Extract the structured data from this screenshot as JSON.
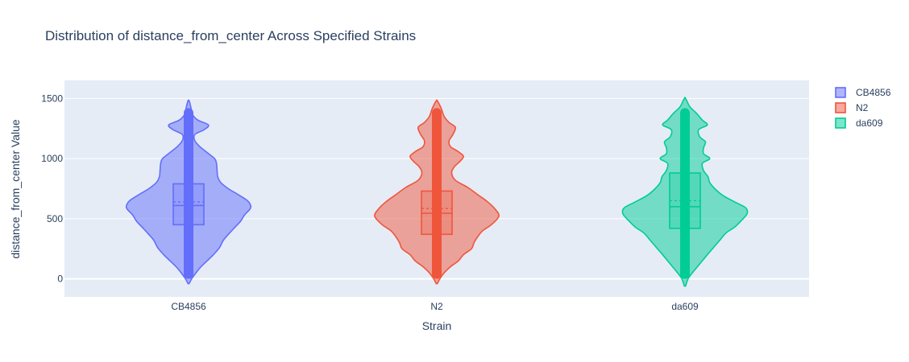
{
  "chart_data": {
    "type": "violin",
    "title": "Distribution of distance_from_center Across Specified Strains",
    "xlabel": "Strain",
    "ylabel": "distance_from_center Value",
    "ylim": [
      -150,
      1650
    ],
    "yticks": [
      0,
      500,
      1000,
      1500
    ],
    "ytick_labels": [
      "0",
      "500",
      "1000",
      "1500"
    ],
    "grid": true,
    "legend_position": "top-right",
    "categories": [
      "CB4856",
      "N2",
      "da609"
    ],
    "series": [
      {
        "name": "CB4856",
        "color": "#636efa",
        "min": 0,
        "max": 1420,
        "q1": 450,
        "median": 610,
        "q3": 790,
        "mean": 640,
        "kde_min": -40,
        "kde_max": 1480,
        "density": [
          [
            -40,
            0.01
          ],
          [
            0,
            0.05
          ],
          [
            50,
            0.12
          ],
          [
            100,
            0.2
          ],
          [
            150,
            0.3
          ],
          [
            200,
            0.4
          ],
          [
            260,
            0.5
          ],
          [
            320,
            0.56
          ],
          [
            380,
            0.66
          ],
          [
            430,
            0.75
          ],
          [
            480,
            0.84
          ],
          [
            530,
            0.9
          ],
          [
            580,
            0.99
          ],
          [
            610,
            1.0
          ],
          [
            650,
            0.95
          ],
          [
            700,
            0.8
          ],
          [
            750,
            0.64
          ],
          [
            800,
            0.52
          ],
          [
            850,
            0.47
          ],
          [
            900,
            0.46
          ],
          [
            960,
            0.45
          ],
          [
            1000,
            0.42
          ],
          [
            1050,
            0.3
          ],
          [
            1100,
            0.18
          ],
          [
            1150,
            0.1
          ],
          [
            1200,
            0.1
          ],
          [
            1240,
            0.25
          ],
          [
            1280,
            0.32
          ],
          [
            1320,
            0.15
          ],
          [
            1370,
            0.06
          ],
          [
            1420,
            0.04
          ],
          [
            1480,
            0.01
          ]
        ]
      },
      {
        "name": "N2",
        "color": "#ef553b",
        "min": 0,
        "max": 1420,
        "q1": 370,
        "median": 545,
        "q3": 730,
        "mean": 585,
        "kde_min": -40,
        "kde_max": 1480,
        "density": [
          [
            -40,
            0.01
          ],
          [
            0,
            0.05
          ],
          [
            50,
            0.12
          ],
          [
            100,
            0.22
          ],
          [
            150,
            0.35
          ],
          [
            200,
            0.43
          ],
          [
            250,
            0.56
          ],
          [
            300,
            0.6
          ],
          [
            350,
            0.66
          ],
          [
            400,
            0.74
          ],
          [
            450,
            0.88
          ],
          [
            520,
            1.0
          ],
          [
            580,
            0.94
          ],
          [
            640,
            0.82
          ],
          [
            700,
            0.66
          ],
          [
            760,
            0.5
          ],
          [
            820,
            0.3
          ],
          [
            880,
            0.24
          ],
          [
            930,
            0.28
          ],
          [
            980,
            0.38
          ],
          [
            1020,
            0.43
          ],
          [
            1060,
            0.34
          ],
          [
            1100,
            0.22
          ],
          [
            1150,
            0.2
          ],
          [
            1200,
            0.26
          ],
          [
            1260,
            0.3
          ],
          [
            1300,
            0.2
          ],
          [
            1350,
            0.12
          ],
          [
            1420,
            0.07
          ],
          [
            1480,
            0.01
          ]
        ]
      },
      {
        "name": "da609",
        "color": "#00cc96",
        "min": 0,
        "max": 1420,
        "q1": 420,
        "median": 600,
        "q3": 880,
        "mean": 650,
        "kde_min": -60,
        "kde_max": 1500,
        "density": [
          [
            -60,
            0.01
          ],
          [
            0,
            0.05
          ],
          [
            50,
            0.12
          ],
          [
            100,
            0.2
          ],
          [
            150,
            0.28
          ],
          [
            200,
            0.36
          ],
          [
            260,
            0.46
          ],
          [
            320,
            0.56
          ],
          [
            380,
            0.66
          ],
          [
            430,
            0.8
          ],
          [
            480,
            0.9
          ],
          [
            540,
            1.0
          ],
          [
            590,
            0.98
          ],
          [
            640,
            0.8
          ],
          [
            690,
            0.62
          ],
          [
            740,
            0.5
          ],
          [
            800,
            0.4
          ],
          [
            850,
            0.37
          ],
          [
            900,
            0.3
          ],
          [
            960,
            0.28
          ],
          [
            1000,
            0.4
          ],
          [
            1040,
            0.3
          ],
          [
            1090,
            0.3
          ],
          [
            1140,
            0.33
          ],
          [
            1180,
            0.24
          ],
          [
            1240,
            0.22
          ],
          [
            1280,
            0.36
          ],
          [
            1320,
            0.28
          ],
          [
            1380,
            0.18
          ],
          [
            1430,
            0.08
          ],
          [
            1500,
            0.01
          ]
        ]
      }
    ]
  }
}
